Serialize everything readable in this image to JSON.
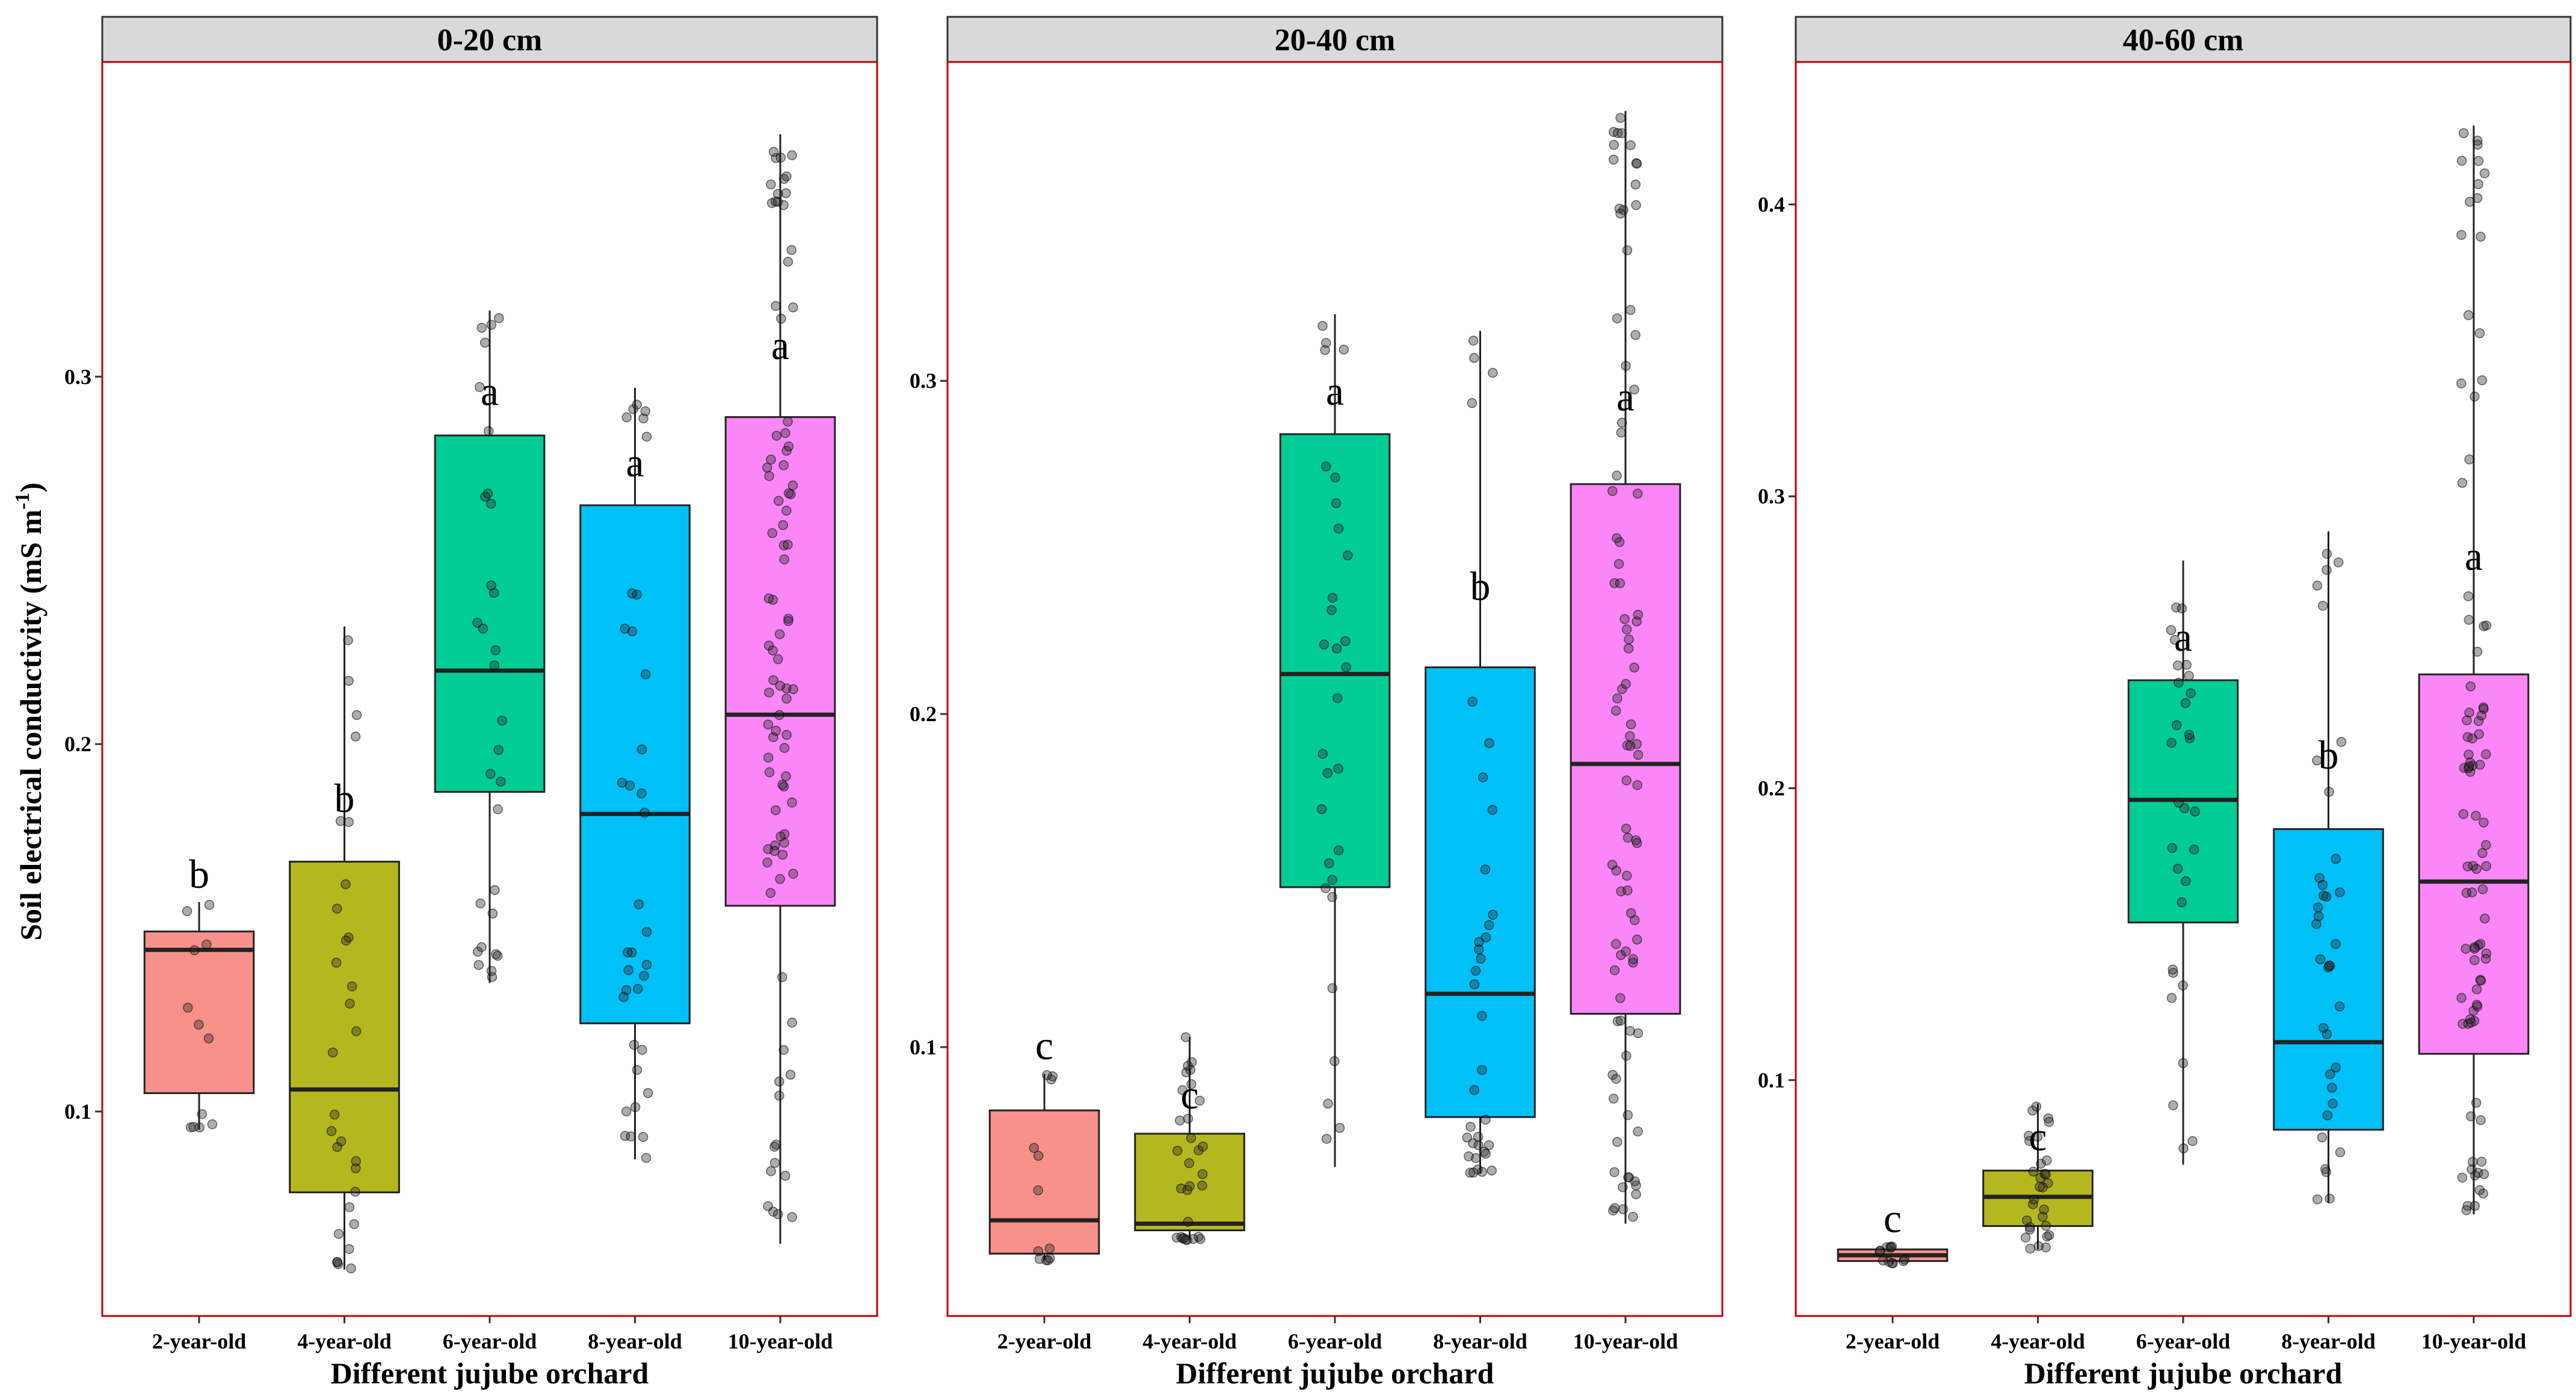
{
  "chart_data": {
    "type": "box",
    "ylabel": "Soil electrical conductivity  (mS m",
    "ylabel_sup": "-1",
    "ylabel_close": ")",
    "xlabel": "Different jujube orchard",
    "categories": [
      "2-year-old",
      "4-year-old",
      "6-year-old",
      "8-year-old",
      "10-year-old"
    ],
    "fill_colors": [
      "#F8918A",
      "#B5B71E",
      "#00CC96",
      "#00C0F8",
      "#FA86F8"
    ],
    "panels": [
      {
        "title": "0-20 cm",
        "ylim": [
          0.045,
          0.385
        ],
        "yticks": [
          0.1,
          0.2,
          0.3
        ],
        "ytick_labels": [
          "0.1",
          "0.2",
          "0.3"
        ],
        "boxes": [
          {
            "q1": 0.105,
            "median": 0.144,
            "q3": 0.149,
            "lower": 0.095,
            "upper": 0.157,
            "letter": "b",
            "n": 12
          },
          {
            "q1": 0.078,
            "median": 0.106,
            "q3": 0.168,
            "lower": 0.057,
            "upper": 0.232,
            "letter": "b",
            "n": 30
          },
          {
            "q1": 0.187,
            "median": 0.22,
            "q3": 0.284,
            "lower": 0.135,
            "upper": 0.318,
            "letter": "a",
            "n": 30
          },
          {
            "q1": 0.124,
            "median": 0.181,
            "q3": 0.265,
            "lower": 0.087,
            "upper": 0.297,
            "letter": "a",
            "n": 36
          },
          {
            "q1": 0.156,
            "median": 0.208,
            "q3": 0.289,
            "lower": 0.064,
            "upper": 0.366,
            "letter": "a",
            "n": 90
          }
        ]
      },
      {
        "title": "20-40 cm",
        "ylim": [
          0.02,
          0.395
        ],
        "yticks": [
          0.1,
          0.2,
          0.3
        ],
        "ytick_labels": [
          "0.1",
          "0.2",
          "0.3"
        ],
        "boxes": [
          {
            "q1": 0.038,
            "median": 0.048,
            "q3": 0.081,
            "lower": 0.036,
            "upper": 0.092,
            "letter": "c",
            "n": 12
          },
          {
            "q1": 0.045,
            "median": 0.047,
            "q3": 0.074,
            "lower": 0.042,
            "upper": 0.103,
            "letter": "c",
            "n": 30
          },
          {
            "q1": 0.148,
            "median": 0.212,
            "q3": 0.284,
            "lower": 0.064,
            "upper": 0.32,
            "letter": "a",
            "n": 30
          },
          {
            "q1": 0.079,
            "median": 0.116,
            "q3": 0.214,
            "lower": 0.062,
            "upper": 0.315,
            "letter": "b",
            "n": 36
          },
          {
            "q1": 0.11,
            "median": 0.185,
            "q3": 0.269,
            "lower": 0.047,
            "upper": 0.381,
            "letter": "a",
            "n": 90
          }
        ]
      },
      {
        "title": "40-60 cm",
        "ylim": [
          0.02,
          0.448
        ],
        "yticks": [
          0.1,
          0.2,
          0.3,
          0.4
        ],
        "ytick_labels": [
          "0.1",
          "0.2",
          "0.3",
          "0.4"
        ],
        "boxes": [
          {
            "q1": 0.038,
            "median": 0.04,
            "q3": 0.042,
            "lower": 0.037,
            "upper": 0.043,
            "letter": "c",
            "n": 12
          },
          {
            "q1": 0.05,
            "median": 0.06,
            "q3": 0.069,
            "lower": 0.042,
            "upper": 0.092,
            "letter": "c",
            "n": 30
          },
          {
            "q1": 0.154,
            "median": 0.196,
            "q3": 0.237,
            "lower": 0.071,
            "upper": 0.278,
            "letter": "a",
            "n": 30
          },
          {
            "q1": 0.083,
            "median": 0.113,
            "q3": 0.186,
            "lower": 0.058,
            "upper": 0.288,
            "letter": "b",
            "n": 36
          },
          {
            "q1": 0.109,
            "median": 0.168,
            "q3": 0.239,
            "lower": 0.054,
            "upper": 0.427,
            "letter": "a",
            "n": 90
          }
        ]
      }
    ]
  }
}
